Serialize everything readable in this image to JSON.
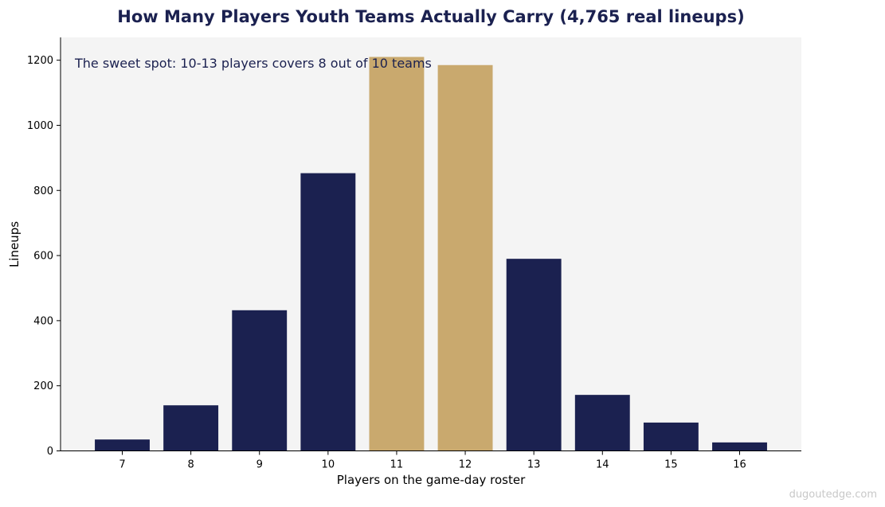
{
  "chart_data": {
    "type": "bar",
    "title": "How Many Players Youth Teams Actually Carry (4,765 real lineups)",
    "xlabel": "Players on the game-day roster",
    "ylabel": "Lineups",
    "categories": [
      "7",
      "8",
      "9",
      "10",
      "11",
      "12",
      "13",
      "14",
      "15",
      "16"
    ],
    "values": [
      35,
      140,
      432,
      853,
      1210,
      1185,
      590,
      172,
      87,
      26
    ],
    "highlight": [
      false,
      false,
      false,
      false,
      true,
      true,
      false,
      false,
      false,
      false
    ],
    "ylim": [
      0,
      1270
    ],
    "yticks": [
      0,
      200,
      400,
      600,
      800,
      1000,
      1200
    ],
    "annotation": "The sweet spot: 10-13 players covers 8 out of 10 teams",
    "grid": false,
    "colors": {
      "bar": "#1b2150",
      "highlight_bar": "#c9a96e",
      "plot_background": "#f4f4f4",
      "title": "#1b2150"
    }
  },
  "watermark": "dugoutedge.com"
}
